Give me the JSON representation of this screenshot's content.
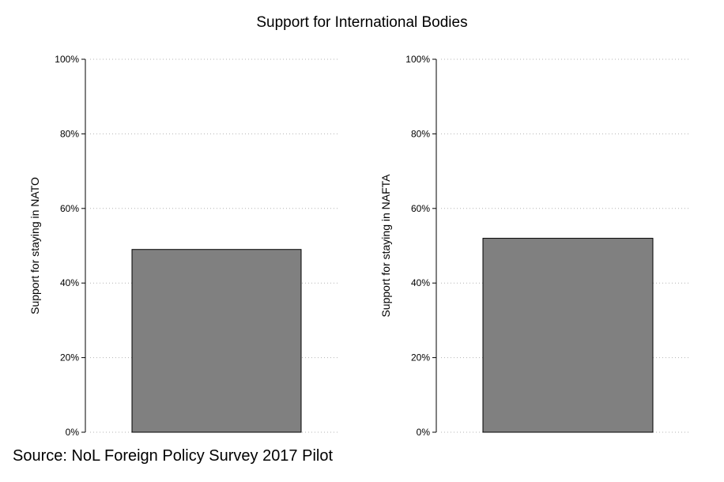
{
  "title": "Support for International Bodies",
  "source": "Source: NoL Foreign Policy Survey 2017 Pilot",
  "colors": {
    "bar": "#808080",
    "bar_outline": "#000000",
    "grid": "#b3b3b3"
  },
  "chart_data": [
    {
      "type": "bar",
      "ylabel": "Support for staying in NATO",
      "xlabel": "",
      "categories": [
        ""
      ],
      "values": [
        0.49
      ],
      "ylim": [
        0,
        1
      ],
      "yticks": [
        0,
        0.2,
        0.4,
        0.6,
        0.8,
        1.0
      ],
      "ytick_labels": [
        "0%",
        "20%",
        "40%",
        "60%",
        "80%",
        "100%"
      ],
      "grid": "horizontal dotted",
      "legend": "none"
    },
    {
      "type": "bar",
      "ylabel": "Support for staying in NAFTA",
      "xlabel": "",
      "categories": [
        ""
      ],
      "values": [
        0.52
      ],
      "ylim": [
        0,
        1
      ],
      "yticks": [
        0,
        0.2,
        0.4,
        0.6,
        0.8,
        1.0
      ],
      "ytick_labels": [
        "0%",
        "20%",
        "40%",
        "60%",
        "80%",
        "100%"
      ],
      "grid": "horizontal dotted",
      "legend": "none"
    }
  ]
}
